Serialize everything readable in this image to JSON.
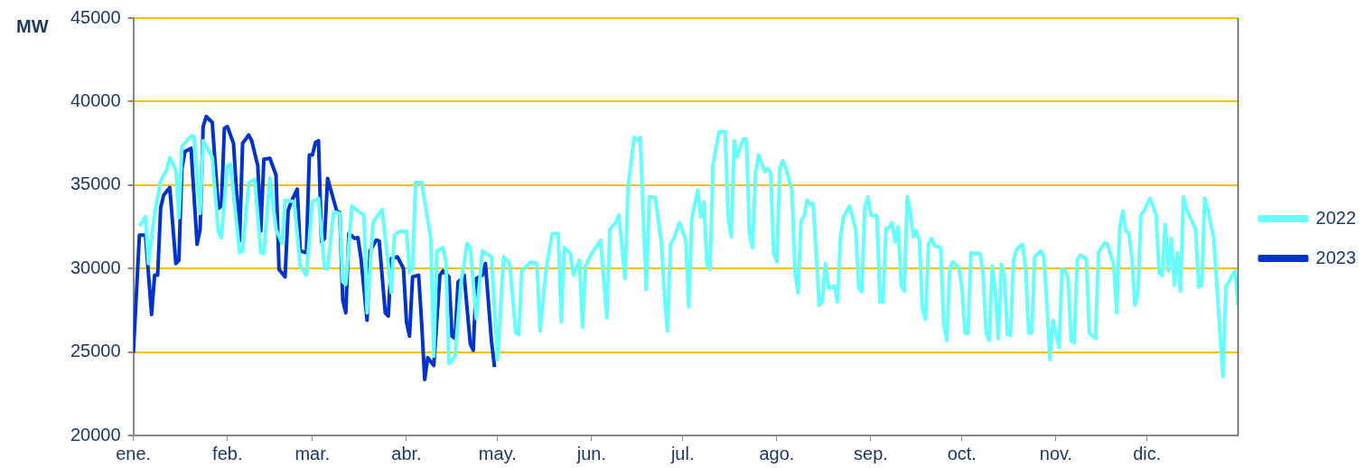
{
  "chart_data": {
    "type": "line",
    "ylabel": "MW",
    "xlim": [
      "--01-01",
      "--12-31"
    ],
    "xticks": [
      {
        "value": "--01-01",
        "label": "ene."
      },
      {
        "value": "--02-01",
        "label": "feb."
      },
      {
        "value": "--03-01",
        "label": "mar."
      },
      {
        "value": "--04-01",
        "label": "abr."
      },
      {
        "value": "--05-01",
        "label": "may."
      },
      {
        "value": "--06-01",
        "label": "jun."
      },
      {
        "value": "--07-01",
        "label": "jul."
      },
      {
        "value": "--08-01",
        "label": "ago."
      },
      {
        "value": "--09-01",
        "label": "sep."
      },
      {
        "value": "--10-01",
        "label": "oct."
      },
      {
        "value": "--11-01",
        "label": "nov."
      },
      {
        "value": "--12-01",
        "label": "dic."
      }
    ],
    "ylim": [
      20000,
      45000
    ],
    "yticks": [
      20000,
      25000,
      30000,
      35000,
      40000,
      45000
    ],
    "grid": "y",
    "legend": "right",
    "marker": "none",
    "line_style": "solid",
    "series": [
      {
        "name": "2022",
        "color": "#66ffff",
        "x": [
          "--01-03",
          "--01-05",
          "--01-06",
          "--01-08",
          "--01-10",
          "--01-12",
          "--01-13",
          "--01-15",
          "--01-16",
          "--01-17",
          "--01-20",
          "--01-21",
          "--01-23",
          "--01-24",
          "--01-27",
          "--01-29",
          "--01-30",
          "--02-01",
          "--02-02",
          "--02-05",
          "--02-06",
          "--02-08",
          "--02-10",
          "--02-12",
          "--02-13",
          "--02-15",
          "--02-17",
          "--02-19",
          "--02-20",
          "--02-23",
          "--02-25",
          "--02-27",
          "--03-01",
          "--03-03",
          "--03-05",
          "--03-06",
          "--03-08",
          "--03-10",
          "--03-11",
          "--03-12",
          "--03-14",
          "--03-16",
          "--03-18",
          "--03-19",
          "--03-21",
          "--03-23",
          "--03-24",
          "--03-27",
          "--03-28",
          "--03-30",
          "--03-31",
          "--04-01",
          "--04-02",
          "--04-03",
          "--04-04",
          "--04-06",
          "--04-09",
          "--04-10",
          "--04-11",
          "--04-13",
          "--04-14",
          "--04-15",
          "--04-17",
          "--04-19",
          "--04-21",
          "--04-22",
          "--04-24",
          "--04-26",
          "--04-29",
          "--05-01",
          "--05-03",
          "--05-05",
          "--05-07",
          "--05-08",
          "--05-09",
          "--05-12",
          "--05-14",
          "--05-15",
          "--05-17",
          "--05-19",
          "--05-21",
          "--05-22",
          "--05-23",
          "--05-25",
          "--05-26",
          "--05-28",
          "--05-29",
          "--05-30",
          "--06-01",
          "--06-04",
          "--06-06",
          "--06-07",
          "--06-09",
          "--06-10",
          "--06-12",
          "--06-13",
          "--06-15",
          "--06-16",
          "--06-17",
          "--06-19",
          "--06-20",
          "--06-22",
          "--06-24",
          "--06-25",
          "--06-26",
          "--06-27",
          "--06-28",
          "--06-30",
          "--07-02",
          "--07-03",
          "--07-04",
          "--07-06",
          "--07-07",
          "--07-08",
          "--07-09",
          "--07-10",
          "--07-11",
          "--07-13",
          "--07-15",
          "--07-16",
          "--07-17",
          "--07-18",
          "--07-19",
          "--07-21",
          "--07-22",
          "--07-23",
          "--07-24",
          "--07-25",
          "--07-26",
          "--07-28",
          "--07-29",
          "--07-30",
          "--07-31",
          "--08-01",
          "--08-02",
          "--08-03",
          "--08-04",
          "--08-06",
          "--08-07",
          "--08-08",
          "--08-09",
          "--08-10",
          "--08-11",
          "--08-12",
          "--08-13",
          "--08-15",
          "--08-16",
          "--08-17",
          "--08-18",
          "--08-20",
          "--08-21",
          "--08-22",
          "--08-23",
          "--08-25",
          "--08-27",
          "--08-28",
          "--08-29",
          "--08-30",
          "--08-31",
          "--09-01",
          "--09-03",
          "--09-04",
          "--09-05",
          "--09-06",
          "--09-07",
          "--09-08",
          "--09-09",
          "--09-10",
          "--09-11",
          "--09-12",
          "--09-13",
          "--09-14",
          "--09-15",
          "--09-16",
          "--09-17",
          "--09-18",
          "--09-19",
          "--09-20",
          "--09-21",
          "--09-22",
          "--09-24",
          "--09-25",
          "--09-26",
          "--09-27",
          "--09-28",
          "--09-30",
          "--10-01",
          "--10-02",
          "--10-03",
          "--10-04",
          "--10-05",
          "--10-07",
          "--10-08",
          "--10-09",
          "--10-10",
          "--10-11",
          "--10-12",
          "--10-13",
          "--10-14",
          "--10-15",
          "--10-16",
          "--10-17",
          "--10-18",
          "--10-19",
          "--10-21",
          "--10-22",
          "--10-23",
          "--10-24",
          "--10-25",
          "--10-27",
          "--10-28",
          "--10-29",
          "--10-30",
          "--10-31",
          "--11-02",
          "--11-03",
          "--11-04",
          "--11-05",
          "--11-06",
          "--11-07",
          "--11-08",
          "--11-09",
          "--11-10",
          "--11-11",
          "--11-12",
          "--11-14",
          "--11-15",
          "--11-17",
          "--11-18",
          "--11-20",
          "--11-21",
          "--11-22",
          "--11-23",
          "--11-24",
          "--11-25",
          "--11-26",
          "--11-27",
          "--11-28",
          "--11-29",
          "--11-30",
          "--12-02",
          "--12-04",
          "--12-05",
          "--12-06",
          "--12-07",
          "--12-08",
          "--12-09",
          "--12-10",
          "--12-11",
          "--12-12",
          "--12-13",
          "--12-14",
          "--12-17",
          "--12-18",
          "--12-19",
          "--12-20",
          "--12-21",
          "--12-23",
          "--12-26",
          "--12-27",
          "--12-30",
          "--12-31"
        ],
        "values": [
          32550,
          33100,
          30300,
          33300,
          35250,
          35900,
          36650,
          35900,
          33050,
          37300,
          37950,
          37900,
          33300,
          37650,
          36650,
          32200,
          31850,
          36150,
          36250,
          30950,
          31050,
          35100,
          35350,
          30950,
          30900,
          35400,
          32350,
          31500,
          34100,
          34000,
          30150,
          29600,
          34000,
          34200,
          30000,
          30000,
          33400,
          33300,
          29200,
          29050,
          33750,
          33450,
          33200,
          27350,
          32750,
          33300,
          33550,
          28550,
          32000,
          32250,
          32200,
          32250,
          29750,
          30050,
          35150,
          35150,
          31800,
          24750,
          31050,
          31250,
          30400,
          24300,
          24750,
          29200,
          31500,
          31250,
          27000,
          31050,
          30700,
          24550,
          30700,
          30300,
          26150,
          26050,
          29850,
          30400,
          30300,
          26250,
          29950,
          32100,
          32100,
          26800,
          31250,
          30900,
          29600,
          30500,
          26500,
          30150,
          30900,
          31700,
          27050,
          32350,
          32750,
          33200,
          29400,
          34850,
          37850,
          37700,
          37850,
          28750,
          34300,
          34250,
          31500,
          28350,
          26250,
          31500,
          31750,
          32750,
          31700,
          27700,
          33000,
          34700,
          33100,
          34000,
          30250,
          29950,
          36250,
          38200,
          38200,
          33000,
          31900,
          37650,
          36700,
          37750,
          37750,
          32100,
          31250,
          35700,
          36800,
          35800,
          36000,
          35700,
          30900,
          30400,
          36000,
          36450,
          36000,
          34700,
          29750,
          28550,
          32850,
          33100,
          34100,
          33850,
          33900,
          27800,
          28050,
          30300,
          28850,
          28950,
          28000,
          31900,
          33100,
          33750,
          32350,
          28850,
          28600,
          33650,
          34300,
          33200,
          33150,
          28000,
          28000,
          32400,
          32450,
          32750,
          31600,
          32500,
          29000,
          28650,
          34300,
          33450,
          31900,
          32250,
          31700,
          27550,
          26950,
          31450,
          31800,
          31350,
          31250,
          26700,
          25700,
          29950,
          30400,
          30050,
          28850,
          26150,
          26100,
          30950,
          30900,
          30900,
          29600,
          26150,
          25700,
          30150,
          28650,
          25800,
          30250,
          29600,
          26050,
          26000,
          30500,
          31150,
          31450,
          30050,
          26150,
          26150,
          30700,
          31050,
          30700,
          27900,
          24550,
          26900,
          25300,
          29950,
          29900,
          29400,
          25700,
          25550,
          30500,
          30800,
          30700,
          30600,
          26150,
          25800,
          30950,
          31550,
          31450,
          30250,
          27350,
          32450,
          33450,
          32250,
          32100,
          30700,
          27800,
          28550,
          33200,
          33450,
          34200,
          33200,
          29750,
          29600,
          32650,
          29850,
          31800,
          29000,
          30950,
          28650,
          34300,
          33550,
          32350,
          28900,
          29000,
          34200,
          33550,
          31800,
          23550,
          28900,
          29850,
          27800
        ]
      },
      {
        "name": "2023",
        "color": "#0033cc",
        "x": [
          "--01-01",
          "--01-03",
          "--01-05",
          "--01-07",
          "--01-08",
          "--01-09",
          "--01-10",
          "--01-11",
          "--01-13",
          "--01-15",
          "--01-16",
          "--01-17",
          "--01-18",
          "--01-20",
          "--01-22",
          "--01-23",
          "--01-24",
          "--01-25",
          "--01-27",
          "--01-29",
          "--01-30",
          "--01-31",
          "--02-01",
          "--02-03",
          "--02-05",
          "--02-06",
          "--02-08",
          "--02-09",
          "--02-11",
          "--02-12",
          "--02-13",
          "--02-15",
          "--02-17",
          "--02-18",
          "--02-20",
          "--02-21",
          "--02-22",
          "--02-24",
          "--02-25",
          "--02-27",
          "--02-28",
          "--03-01",
          "--03-02",
          "--03-03",
          "--03-04",
          "--03-05",
          "--03-06",
          "--03-07",
          "--03-09",
          "--03-10",
          "--03-11",
          "--03-12",
          "--03-13",
          "--03-15",
          "--03-16",
          "--03-17",
          "--03-19",
          "--03-20",
          "--03-22",
          "--03-23",
          "--03-25",
          "--03-26",
          "--03-27",
          "--03-29",
          "--03-31",
          "--04-01",
          "--04-02",
          "--04-03",
          "--04-05",
          "--04-06",
          "--04-07",
          "--04-08",
          "--04-10",
          "--04-12",
          "--04-13",
          "--04-15",
          "--04-16",
          "--04-17",
          "--04-18",
          "--04-19",
          "--04-20",
          "--04-22",
          "--04-23",
          "--04-24",
          "--04-26",
          "--04-27",
          "--04-29",
          "--04-30"
        ],
        "values": [
          24950,
          32000,
          32000,
          27250,
          29600,
          29600,
          33650,
          34400,
          34850,
          30300,
          30500,
          36000,
          37000,
          37200,
          31450,
          32350,
          38500,
          39100,
          38750,
          33600,
          33750,
          38400,
          38500,
          37500,
          31650,
          37500,
          38000,
          37650,
          36150,
          32250,
          36550,
          36600,
          35600,
          29950,
          29500,
          33450,
          34000,
          34750,
          31050,
          30950,
          36800,
          36800,
          37550,
          37650,
          31600,
          31800,
          35400,
          34750,
          33450,
          33350,
          28100,
          27350,
          32100,
          31800,
          31850,
          30600,
          26900,
          31050,
          31700,
          31650,
          27350,
          27150,
          30600,
          30700,
          30000,
          26800,
          25950,
          29500,
          29600,
          26700,
          23350,
          24650,
          24200,
          29600,
          29850,
          29500,
          25950,
          25800,
          29200,
          29350,
          29600,
          25500,
          25100,
          29400,
          29600,
          30300,
          25650,
          24100
        ]
      }
    ]
  }
}
